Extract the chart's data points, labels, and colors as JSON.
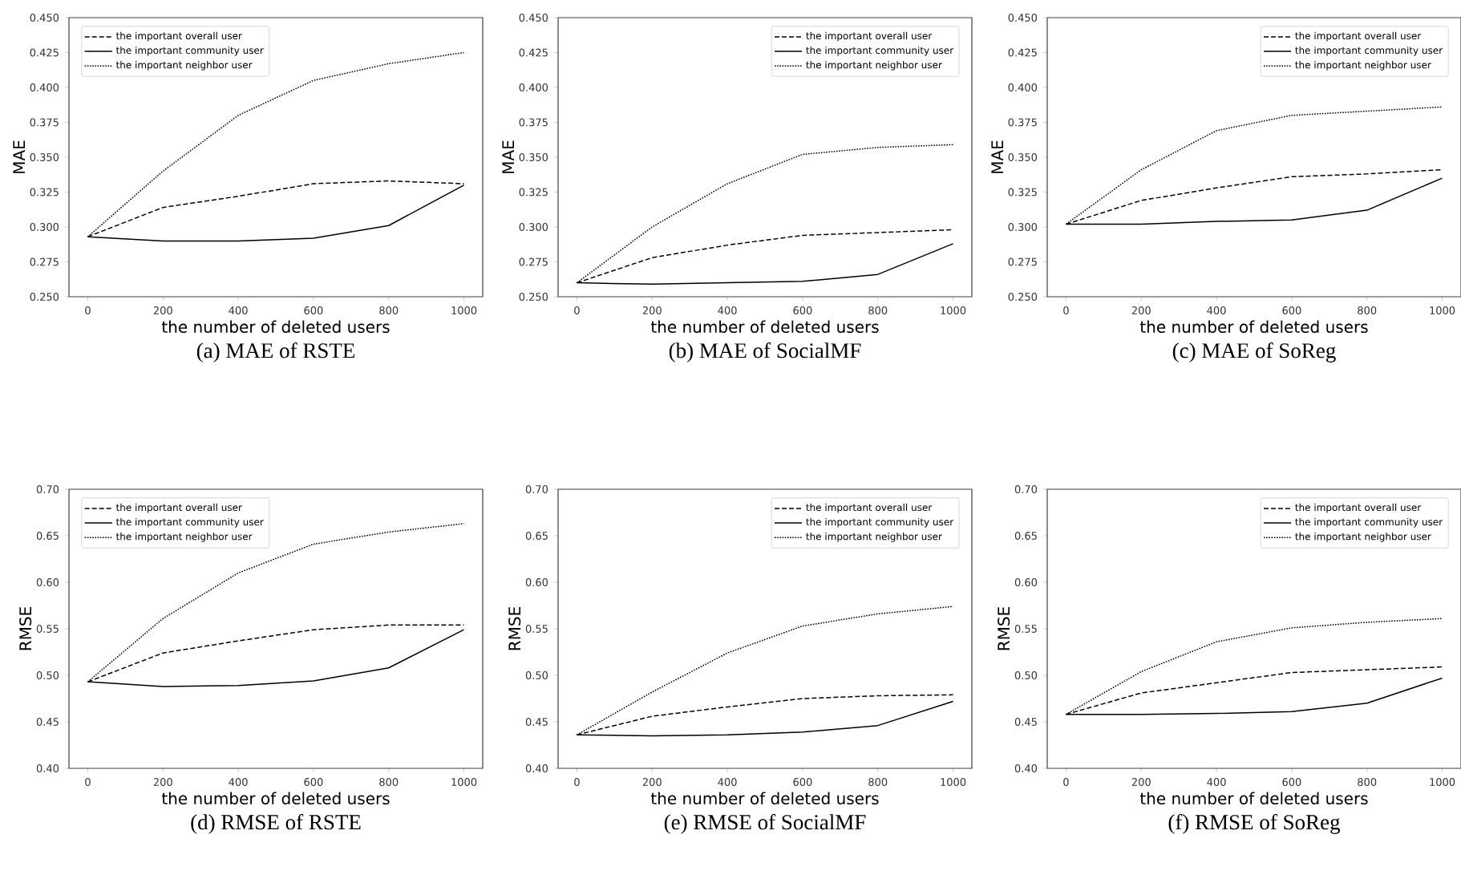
{
  "chart_data": [
    {
      "type": "line",
      "title": "(a) MAE of RSTE",
      "xlabel": "the number of deleted users",
      "ylabel": "MAE",
      "x": [
        0,
        200,
        400,
        600,
        800,
        1000
      ],
      "xlim": [
        -50,
        1050
      ],
      "xticks": [
        0,
        200,
        400,
        600,
        800,
        1000
      ],
      "ylim": [
        0.25,
        0.45
      ],
      "yticks": [
        {
          "value": 0.25,
          "label": "0.250"
        },
        {
          "value": 0.275,
          "label": "0.275"
        },
        {
          "value": 0.3,
          "label": "0.300"
        },
        {
          "value": 0.325,
          "label": "0.325"
        },
        {
          "value": 0.35,
          "label": "0.350"
        },
        {
          "value": 0.375,
          "label": "0.375"
        },
        {
          "value": 0.4,
          "label": "0.400"
        },
        {
          "value": 0.425,
          "label": "0.425"
        },
        {
          "value": 0.45,
          "label": "0.450"
        }
      ],
      "legend": "top left",
      "grid": false,
      "series": [
        {
          "name": "the important overall user",
          "color": "#000000",
          "line_style": "dashed",
          "values": [
            0.293,
            0.314,
            0.322,
            0.331,
            0.333,
            0.331
          ]
        },
        {
          "name": "the important community user",
          "color": "#000000",
          "line_style": "solid",
          "values": [
            0.293,
            0.29,
            0.29,
            0.292,
            0.301,
            0.33
          ]
        },
        {
          "name": "the important neighbor user",
          "color": "#000000",
          "line_style": "dotted",
          "values": [
            0.293,
            0.34,
            0.38,
            0.405,
            0.417,
            0.425
          ]
        }
      ]
    },
    {
      "type": "line",
      "title": "(b) MAE of SocialMF",
      "xlabel": "the number of deleted users",
      "ylabel": "MAE",
      "x": [
        0,
        200,
        400,
        600,
        800,
        1000
      ],
      "xlim": [
        -50,
        1050
      ],
      "xticks": [
        0,
        200,
        400,
        600,
        800,
        1000
      ],
      "ylim": [
        0.25,
        0.45
      ],
      "yticks": [
        {
          "value": 0.25,
          "label": "0.250"
        },
        {
          "value": 0.275,
          "label": "0.275"
        },
        {
          "value": 0.3,
          "label": "0.300"
        },
        {
          "value": 0.325,
          "label": "0.325"
        },
        {
          "value": 0.35,
          "label": "0.350"
        },
        {
          "value": 0.375,
          "label": "0.375"
        },
        {
          "value": 0.4,
          "label": "0.400"
        },
        {
          "value": 0.425,
          "label": "0.425"
        },
        {
          "value": 0.45,
          "label": "0.450"
        }
      ],
      "legend": "top right",
      "grid": false,
      "series": [
        {
          "name": "the important overall user",
          "color": "#000000",
          "line_style": "dashed",
          "values": [
            0.26,
            0.278,
            0.287,
            0.294,
            0.296,
            0.298
          ]
        },
        {
          "name": "the important community user",
          "color": "#000000",
          "line_style": "solid",
          "values": [
            0.26,
            0.259,
            0.26,
            0.261,
            0.266,
            0.288
          ]
        },
        {
          "name": "the important neighbor user",
          "color": "#000000",
          "line_style": "dotted",
          "values": [
            0.26,
            0.3,
            0.331,
            0.352,
            0.357,
            0.359
          ]
        }
      ]
    },
    {
      "type": "line",
      "title": "(c) MAE of SoReg",
      "xlabel": "the number of deleted users",
      "ylabel": "MAE",
      "x": [
        0,
        200,
        400,
        600,
        800,
        1000
      ],
      "xlim": [
        -50,
        1050
      ],
      "xticks": [
        0,
        200,
        400,
        600,
        800,
        1000
      ],
      "ylim": [
        0.25,
        0.45
      ],
      "yticks": [
        {
          "value": 0.25,
          "label": "0.250"
        },
        {
          "value": 0.275,
          "label": "0.275"
        },
        {
          "value": 0.3,
          "label": "0.300"
        },
        {
          "value": 0.325,
          "label": "0.325"
        },
        {
          "value": 0.35,
          "label": "0.350"
        },
        {
          "value": 0.375,
          "label": "0.375"
        },
        {
          "value": 0.4,
          "label": "0.400"
        },
        {
          "value": 0.425,
          "label": "0.425"
        },
        {
          "value": 0.45,
          "label": "0.450"
        }
      ],
      "legend": "top right",
      "grid": false,
      "series": [
        {
          "name": "the important overall user",
          "color": "#000000",
          "line_style": "dashed",
          "values": [
            0.302,
            0.319,
            0.328,
            0.336,
            0.338,
            0.341
          ]
        },
        {
          "name": "the important community user",
          "color": "#000000",
          "line_style": "solid",
          "values": [
            0.302,
            0.302,
            0.304,
            0.305,
            0.312,
            0.335
          ]
        },
        {
          "name": "the important neighbor user",
          "color": "#000000",
          "line_style": "dotted",
          "values": [
            0.302,
            0.341,
            0.369,
            0.38,
            0.383,
            0.386
          ]
        }
      ]
    },
    {
      "type": "line",
      "title": "(d) RMSE of RSTE",
      "xlabel": "the number of deleted users",
      "ylabel": "RMSE",
      "x": [
        0,
        200,
        400,
        600,
        800,
        1000
      ],
      "xlim": [
        -50,
        1050
      ],
      "xticks": [
        0,
        200,
        400,
        600,
        800,
        1000
      ],
      "ylim": [
        0.4,
        0.7
      ],
      "yticks": [
        {
          "value": 0.4,
          "label": "0.40"
        },
        {
          "value": 0.45,
          "label": "0.45"
        },
        {
          "value": 0.5,
          "label": "0.50"
        },
        {
          "value": 0.55,
          "label": "0.55"
        },
        {
          "value": 0.6,
          "label": "0.60"
        },
        {
          "value": 0.65,
          "label": "0.65"
        },
        {
          "value": 0.7,
          "label": "0.70"
        }
      ],
      "legend": "top left",
      "grid": false,
      "series": [
        {
          "name": "the important overall user",
          "color": "#000000",
          "line_style": "dashed",
          "values": [
            0.493,
            0.524,
            0.537,
            0.549,
            0.554,
            0.554
          ]
        },
        {
          "name": "the important community user",
          "color": "#000000",
          "line_style": "solid",
          "values": [
            0.493,
            0.488,
            0.489,
            0.494,
            0.508,
            0.549
          ]
        },
        {
          "name": "the important neighbor user",
          "color": "#000000",
          "line_style": "dotted",
          "values": [
            0.493,
            0.561,
            0.61,
            0.641,
            0.654,
            0.663
          ]
        }
      ]
    },
    {
      "type": "line",
      "title": "(e) RMSE of SocialMF",
      "xlabel": "the number of deleted users",
      "ylabel": "RMSE",
      "x": [
        0,
        200,
        400,
        600,
        800,
        1000
      ],
      "xlim": [
        -50,
        1050
      ],
      "xticks": [
        0,
        200,
        400,
        600,
        800,
        1000
      ],
      "ylim": [
        0.4,
        0.7
      ],
      "yticks": [
        {
          "value": 0.4,
          "label": "0.40"
        },
        {
          "value": 0.45,
          "label": "0.45"
        },
        {
          "value": 0.5,
          "label": "0.50"
        },
        {
          "value": 0.55,
          "label": "0.55"
        },
        {
          "value": 0.6,
          "label": "0.60"
        },
        {
          "value": 0.65,
          "label": "0.65"
        },
        {
          "value": 0.7,
          "label": "0.70"
        }
      ],
      "legend": "top right",
      "grid": false,
      "series": [
        {
          "name": "the important overall user",
          "color": "#000000",
          "line_style": "dashed",
          "values": [
            0.436,
            0.456,
            0.466,
            0.475,
            0.478,
            0.479
          ]
        },
        {
          "name": "the important community user",
          "color": "#000000",
          "line_style": "solid",
          "values": [
            0.436,
            0.435,
            0.436,
            0.439,
            0.446,
            0.472
          ]
        },
        {
          "name": "the important neighbor user",
          "color": "#000000",
          "line_style": "dotted",
          "values": [
            0.436,
            0.482,
            0.524,
            0.553,
            0.566,
            0.574
          ]
        }
      ]
    },
    {
      "type": "line",
      "title": "(f) RMSE of SoReg",
      "xlabel": "the number of deleted users",
      "ylabel": "RMSE",
      "x": [
        0,
        200,
        400,
        600,
        800,
        1000
      ],
      "xlim": [
        -50,
        1050
      ],
      "xticks": [
        0,
        200,
        400,
        600,
        800,
        1000
      ],
      "ylim": [
        0.4,
        0.7
      ],
      "yticks": [
        {
          "value": 0.4,
          "label": "0.40"
        },
        {
          "value": 0.45,
          "label": "0.45"
        },
        {
          "value": 0.5,
          "label": "0.50"
        },
        {
          "value": 0.55,
          "label": "0.55"
        },
        {
          "value": 0.6,
          "label": "0.60"
        },
        {
          "value": 0.65,
          "label": "0.65"
        },
        {
          "value": 0.7,
          "label": "0.70"
        }
      ],
      "legend": "top right",
      "grid": false,
      "series": [
        {
          "name": "the important overall user",
          "color": "#000000",
          "line_style": "dashed",
          "values": [
            0.458,
            0.481,
            0.492,
            0.503,
            0.506,
            0.509
          ]
        },
        {
          "name": "the important community user",
          "color": "#000000",
          "line_style": "solid",
          "values": [
            0.458,
            0.458,
            0.459,
            0.461,
            0.47,
            0.497
          ]
        },
        {
          "name": "the important neighbor user",
          "color": "#000000",
          "line_style": "dotted",
          "values": [
            0.458,
            0.504,
            0.536,
            0.551,
            0.557,
            0.561
          ]
        }
      ]
    }
  ]
}
